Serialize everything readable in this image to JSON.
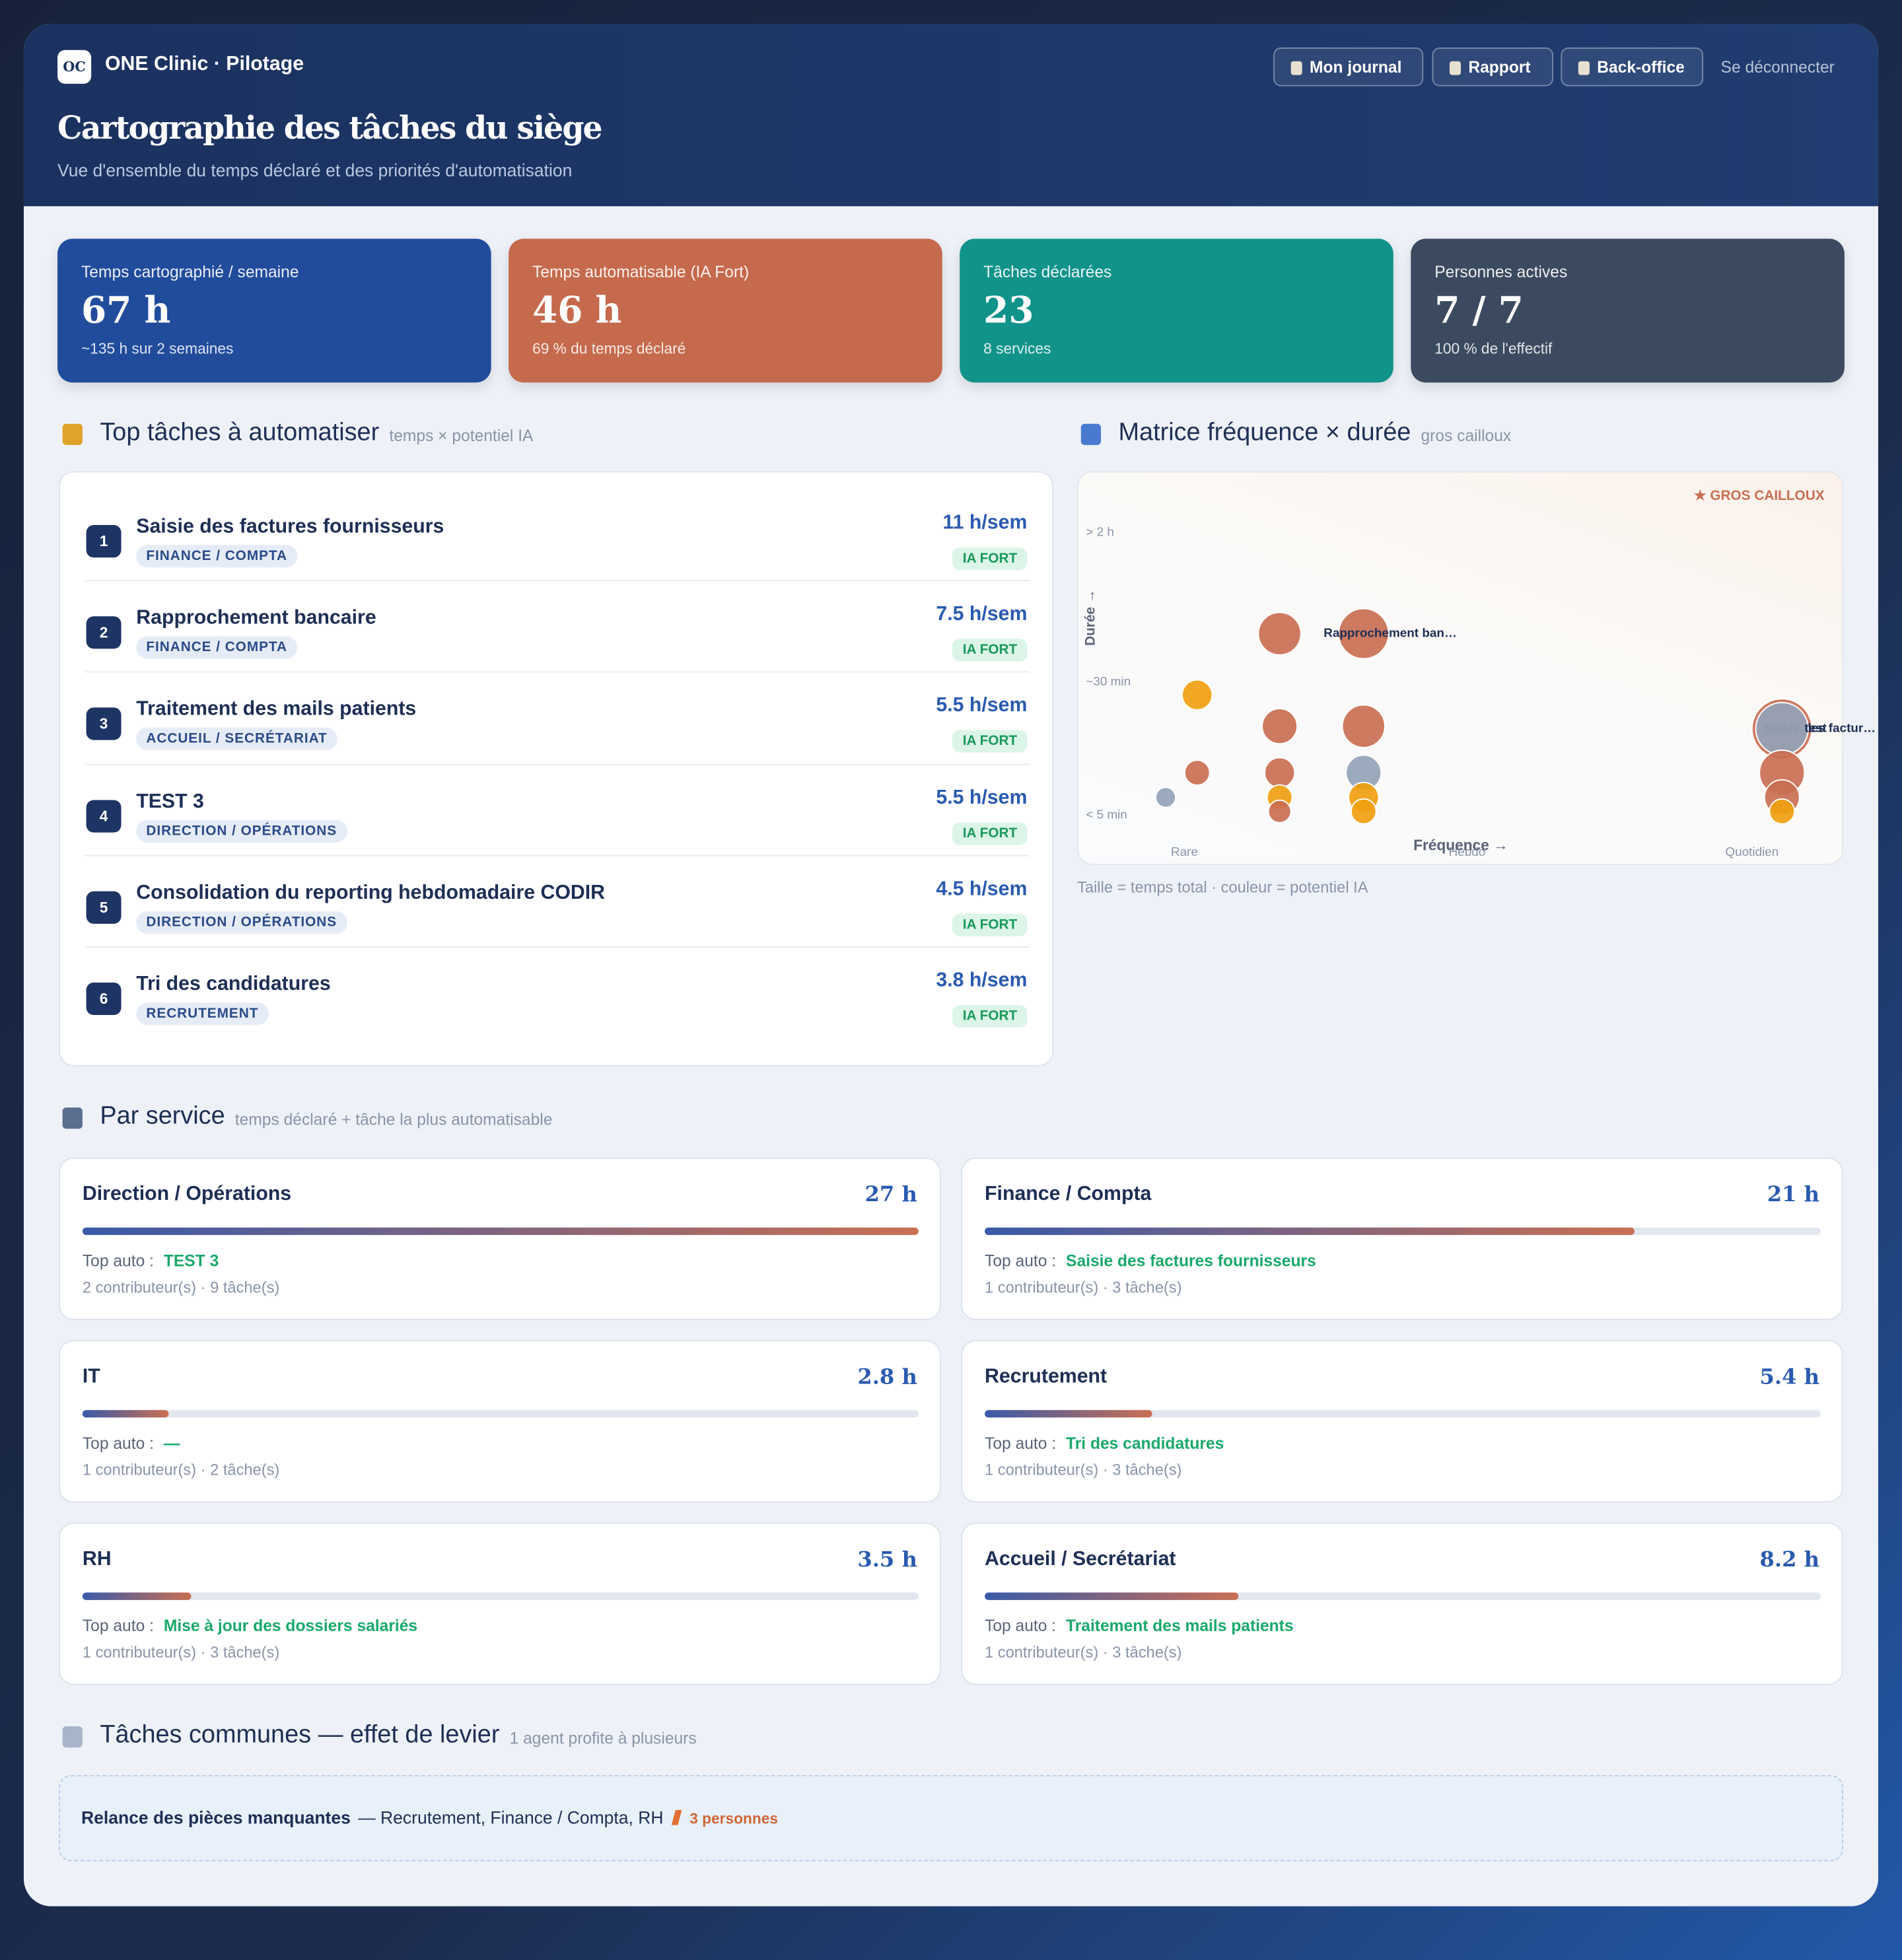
{
  "header": {
    "logo": "OC",
    "brand": "ONE Clinic · Pilotage",
    "nav": [
      "Mon journal",
      "Rapport",
      "Back-office"
    ],
    "logout": "Se déconnecter",
    "title": "Cartographie des tâches du siège",
    "subtitle": "Vue d'ensemble du temps déclaré et des priorités d'automatisation"
  },
  "kpis": [
    {
      "label": "Temps cartographié / semaine",
      "value": "67 h",
      "note": "~135 h sur 2 semaines",
      "color": "#214c9c"
    },
    {
      "label": "Temps automatisable (IA Fort)",
      "value": "46 h",
      "note": "69 % du temps déclaré",
      "color": "#c56a4c"
    },
    {
      "label": "Tâches déclarées",
      "value": "23",
      "note": "8 services",
      "color": "#11938a"
    },
    {
      "label": "Personnes actives",
      "value": "7 / 7",
      "note": "100 % de l'effectif",
      "color": "#3b4a5e"
    }
  ],
  "top_tasks": {
    "title": "Top tâches à automatiser",
    "hint": "temps × potentiel IA",
    "rows": [
      {
        "rank": 1,
        "name": "Saisie des factures fournisseurs",
        "service": "FINANCE / COMPTA",
        "hours": "11 h/sem",
        "badge": "IA FORT"
      },
      {
        "rank": 2,
        "name": "Rapprochement bancaire",
        "service": "FINANCE / COMPTA",
        "hours": "7.5 h/sem",
        "badge": "IA FORT"
      },
      {
        "rank": 3,
        "name": "Traitement des mails patients",
        "service": "ACCUEIL / SECRÉTARIAT",
        "hours": "5.5 h/sem",
        "badge": "IA FORT"
      },
      {
        "rank": 4,
        "name": "TEST 3",
        "service": "DIRECTION / OPÉRATIONS",
        "hours": "5.5 h/sem",
        "badge": "IA FORT"
      },
      {
        "rank": 5,
        "name": "Consolidation du reporting hebdomadaire CODIR",
        "service": "DIRECTION / OPÉRATIONS",
        "hours": "4.5 h/sem",
        "badge": "IA FORT"
      },
      {
        "rank": 6,
        "name": "Tri des candidatures",
        "service": "RECRUTEMENT",
        "hours": "3.8 h/sem",
        "badge": "IA FORT"
      }
    ]
  },
  "matrix": {
    "type": "scatter",
    "title": "Matrice fréquence × durée",
    "hint": "gros cailloux",
    "corner": "★ GROS CAILLOUX",
    "xlabel": "Fréquence →",
    "ylabel": "Durée →",
    "caption": "Taille = temps total · couleur = potentiel IA",
    "xlim": [
      0,
      1
    ],
    "ylim": [
      0,
      1
    ],
    "xticks": [
      {
        "value": 0.128,
        "label": "Rare"
      },
      {
        "value": 0.505,
        "label": "Hebdo"
      },
      {
        "value": 0.885,
        "label": "Quotidien"
      }
    ],
    "yticks": [
      {
        "value": 0.898,
        "label": "> 2 h"
      },
      {
        "value": 0.492,
        "label": "~30 min"
      },
      {
        "value": 0.132,
        "label": "< 5 min"
      }
    ],
    "points": [
      {
        "x": 0.255,
        "y": 0.624,
        "size": 17,
        "color": "#c96f53"
      },
      {
        "x": 0.367,
        "y": 0.624,
        "size": 20,
        "color": "#c96f53",
        "label": "Rapprochement ban…"
      },
      {
        "x": 0.145,
        "y": 0.458,
        "size": 12,
        "color": "#f0a010"
      },
      {
        "x": 0.255,
        "y": 0.373,
        "size": 14,
        "color": "#c96f53"
      },
      {
        "x": 0.367,
        "y": 0.373,
        "size": 17,
        "color": "#c96f53"
      },
      {
        "x": 0.145,
        "y": 0.247,
        "size": 10,
        "color": "#c96f53"
      },
      {
        "x": 0.103,
        "y": 0.18,
        "size": 8,
        "color": "#94a3b8"
      },
      {
        "x": 0.255,
        "y": 0.247,
        "size": 12,
        "color": "#c96f53"
      },
      {
        "x": 0.255,
        "y": 0.18,
        "size": 10,
        "color": "#f0a010"
      },
      {
        "x": 0.255,
        "y": 0.142,
        "size": 9,
        "color": "#c96f53"
      },
      {
        "x": 0.367,
        "y": 0.247,
        "size": 14,
        "color": "#94a3b8"
      },
      {
        "x": 0.367,
        "y": 0.18,
        "size": 12,
        "color": "#f0a010"
      },
      {
        "x": 0.367,
        "y": 0.142,
        "size": 10,
        "color": "#f0a010"
      },
      {
        "x": 0.925,
        "y": 0.366,
        "size": 24,
        "color": "#c96f53",
        "label": "Saisie des factur…"
      },
      {
        "x": 0.925,
        "y": 0.366,
        "size": 21,
        "color": "#94a3b8",
        "label": "test"
      },
      {
        "x": 0.925,
        "y": 0.247,
        "size": 18,
        "color": "#c96f53"
      },
      {
        "x": 0.925,
        "y": 0.18,
        "size": 14,
        "color": "#c96f53"
      },
      {
        "x": 0.925,
        "y": 0.142,
        "size": 10,
        "color": "#f0a010"
      }
    ]
  },
  "services": {
    "title": "Par service",
    "hint": "temps déclaré + tâche la plus automatisable",
    "top_label": "Top auto :",
    "items": [
      {
        "name": "Direction / Opérations",
        "hours": 27,
        "hours_label": "27 h",
        "top": "TEST 3",
        "meta": "2 contributeur(s) · 9 tâche(s)"
      },
      {
        "name": "Finance / Compta",
        "hours": 21,
        "hours_label": "21 h",
        "top": "Saisie des factures fournisseurs",
        "meta": "1 contributeur(s) · 3 tâche(s)"
      },
      {
        "name": "IT",
        "hours": 2.8,
        "hours_label": "2.8 h",
        "top": "—",
        "meta": "1 contributeur(s) · 2 tâche(s)"
      },
      {
        "name": "Recrutement",
        "hours": 5.4,
        "hours_label": "5.4 h",
        "top": "Tri des candidatures",
        "meta": "1 contributeur(s) · 3 tâche(s)"
      },
      {
        "name": "RH",
        "hours": 3.5,
        "hours_label": "3.5 h",
        "top": "Mise à jour des dossiers salariés",
        "meta": "1 contributeur(s) · 3 tâche(s)"
      },
      {
        "name": "Accueil / Secrétariat",
        "hours": 8.2,
        "hours_label": "8.2 h",
        "top": "Traitement des mails patients",
        "meta": "1 contributeur(s) · 3 tâche(s)"
      }
    ]
  },
  "common": {
    "title": "Tâches communes — effet de levier",
    "hint": "1 agent profite à plusieurs",
    "task": "Relance des pièces manquantes",
    "services": "— Recrutement, Finance / Compta, RH",
    "people": "3 personnes"
  }
}
